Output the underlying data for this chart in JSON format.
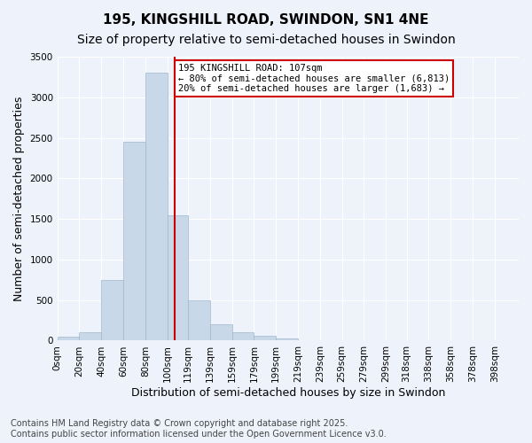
{
  "title_line1": "195, KINGSHILL ROAD, SWINDON, SN1 4NE",
  "title_line2": "Size of property relative to semi-detached houses in Swindon",
  "xlabel": "Distribution of semi-detached houses by size in Swindon",
  "ylabel": "Number of semi-detached properties",
  "annotation_line1": "195 KINGSHILL ROAD: 107sqm",
  "annotation_line2": "← 80% of semi-detached houses are smaller (6,813)",
  "annotation_line3": "20% of semi-detached houses are larger (1,683) →",
  "footer_line1": "Contains HM Land Registry data © Crown copyright and database right 2025.",
  "footer_line2": "Contains public sector information licensed under the Open Government Licence v3.0.",
  "property_size": 107,
  "bar_color": "#c8d8e8",
  "bar_edge_color": "#a0b8cc",
  "vline_color": "#cc0000",
  "annotation_box_color": "#cc0000",
  "background_color": "#eef2fb",
  "grid_color": "#ffffff",
  "categories": [
    "0sqm",
    "20sqm",
    "40sqm",
    "60sqm",
    "80sqm",
    "100sqm",
    "119sqm",
    "139sqm",
    "159sqm",
    "179sqm",
    "199sqm",
    "219sqm",
    "239sqm",
    "259sqm",
    "279sqm",
    "299sqm",
    "318sqm",
    "338sqm",
    "358sqm",
    "378sqm",
    "398sqm"
  ],
  "bin_edges": [
    0,
    20,
    40,
    60,
    80,
    100,
    119,
    139,
    159,
    179,
    199,
    219,
    239,
    259,
    279,
    299,
    318,
    338,
    358,
    378,
    398,
    420
  ],
  "values": [
    50,
    100,
    750,
    2450,
    3300,
    1550,
    500,
    200,
    100,
    60,
    30,
    10,
    5,
    3,
    2,
    1,
    1,
    0,
    0,
    0,
    0
  ],
  "ylim": [
    0,
    3500
  ],
  "yticks": [
    0,
    500,
    1000,
    1500,
    2000,
    2500,
    3000,
    3500
  ],
  "title_fontsize": 11,
  "subtitle_fontsize": 10,
  "axis_label_fontsize": 9,
  "tick_fontsize": 7.5,
  "footer_fontsize": 7
}
